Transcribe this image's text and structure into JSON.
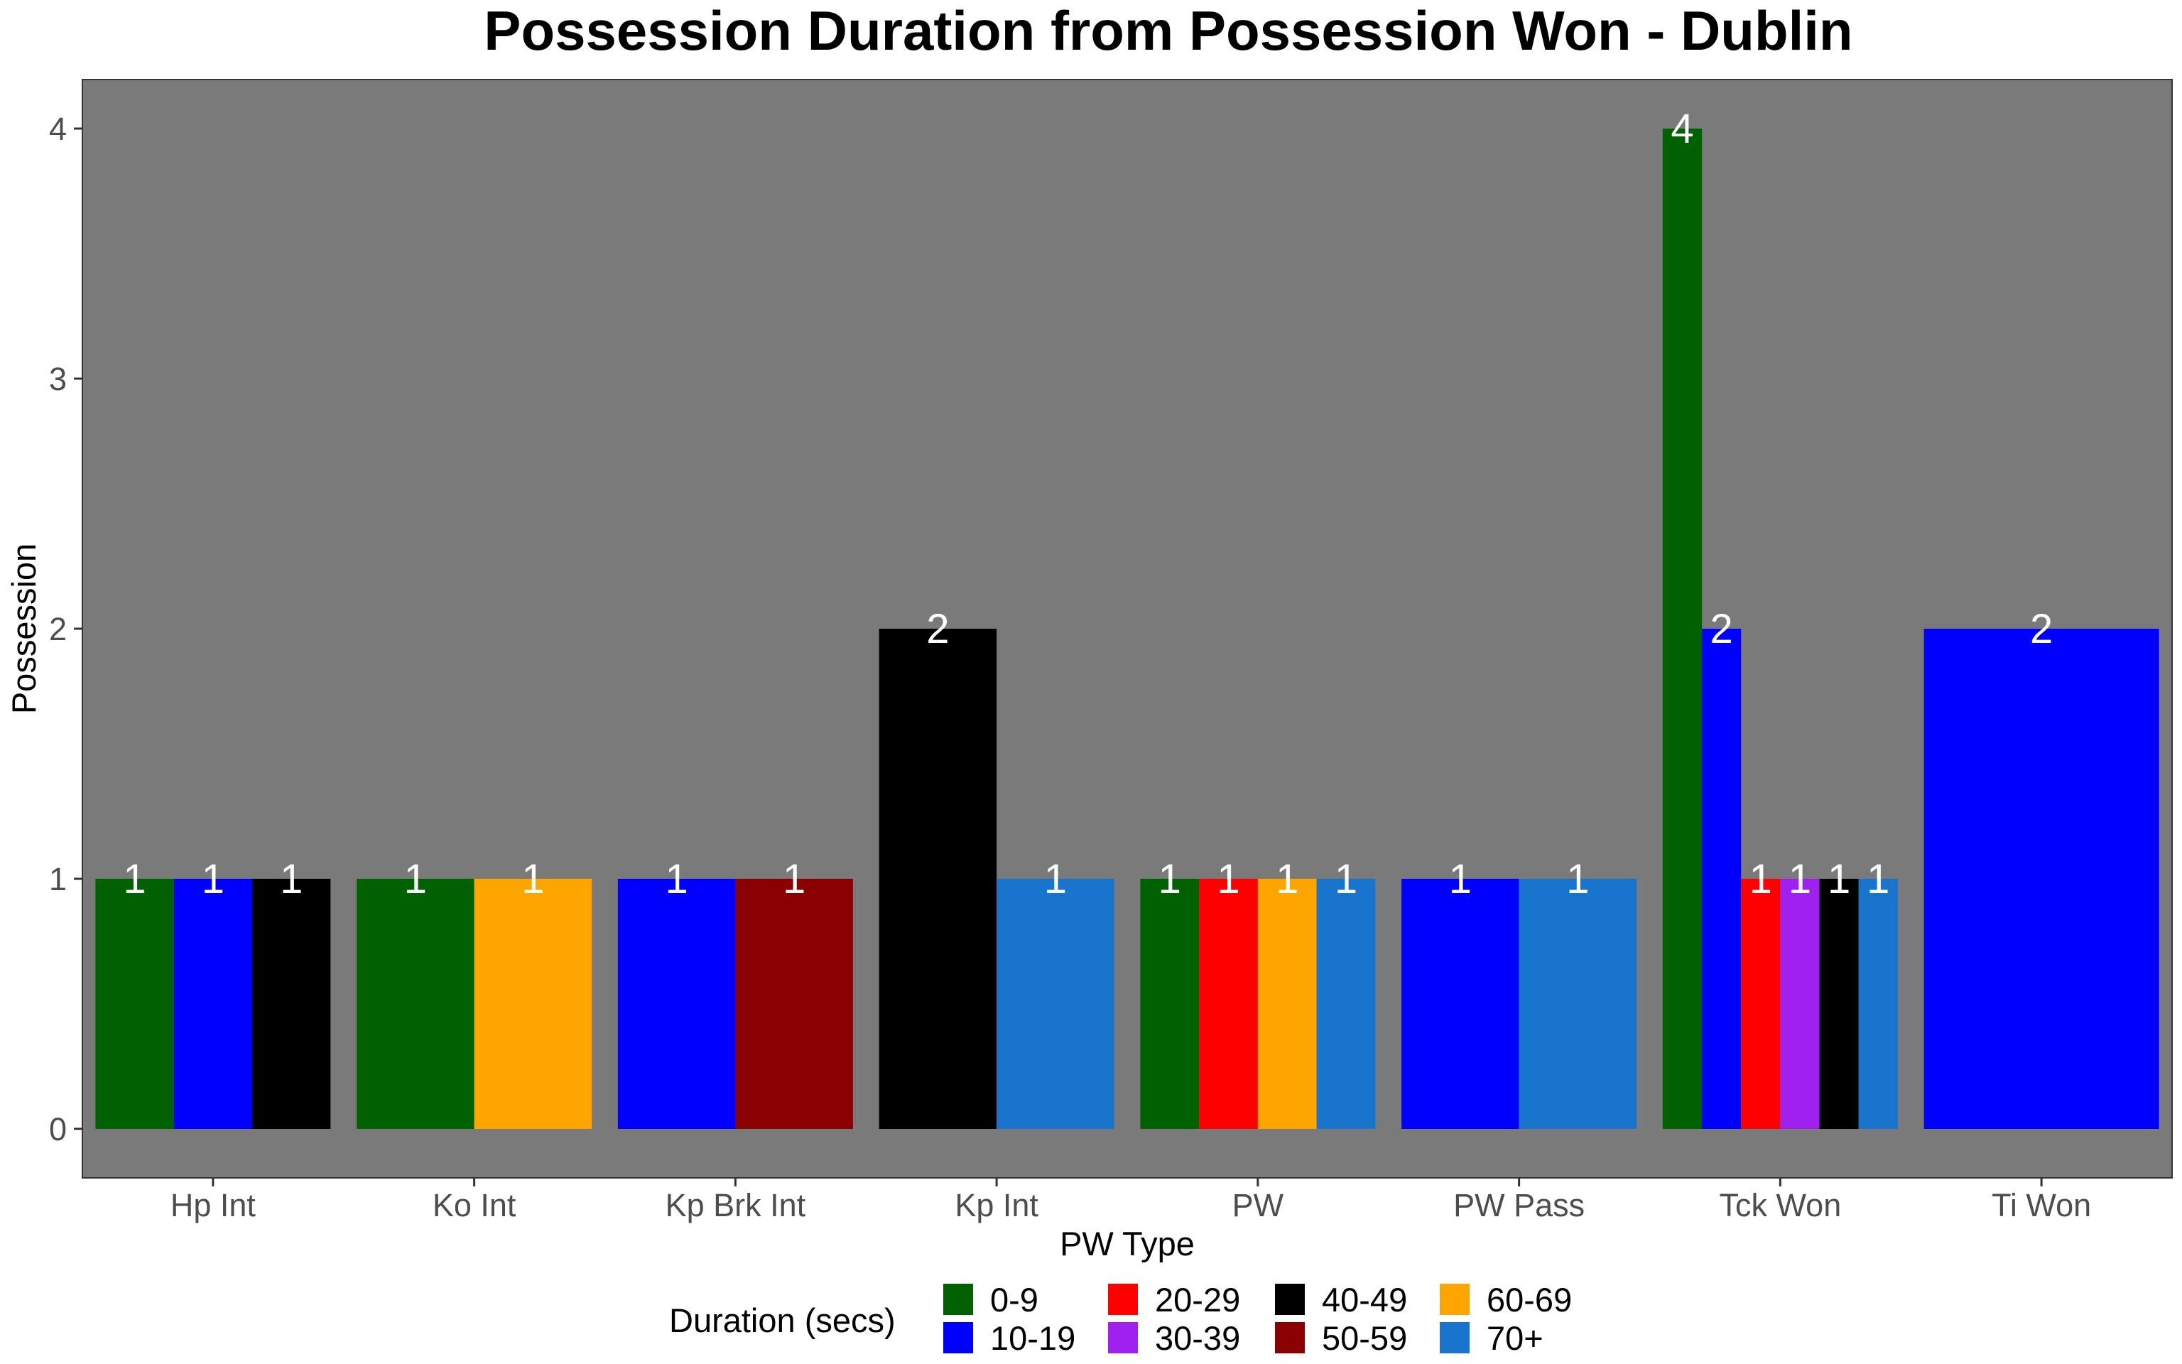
{
  "chart_data": {
    "type": "bar",
    "title": "Possession Duration from Possession Won - Dublin",
    "xlabel": "PW Type",
    "ylabel": "Possession",
    "ylim": [
      0,
      4.2
    ],
    "y_ticks": [
      "0",
      "1",
      "2",
      "3",
      "4"
    ],
    "categories": [
      "Hp Int",
      "Ko Int",
      "Kp Brk Int",
      "Kp Int",
      "PW",
      "PW Pass",
      "Tck Won",
      "Ti Won"
    ],
    "legend": {
      "title": "Duration (secs)",
      "position": "bottom",
      "items": [
        {
          "name": "0-9",
          "color": "#006100"
        },
        {
          "name": "10-19",
          "color": "#0000ff"
        },
        {
          "name": "20-29",
          "color": "#ff0000"
        },
        {
          "name": "30-39",
          "color": "#a020f0"
        },
        {
          "name": "40-49",
          "color": "#000000"
        },
        {
          "name": "50-59",
          "color": "#8b0000"
        },
        {
          "name": "60-69",
          "color": "#ffa500"
        },
        {
          "name": "70+",
          "color": "#1874cd"
        }
      ]
    },
    "groups": [
      {
        "category": "Hp Int",
        "bars": [
          {
            "duration": "0-9",
            "value": 1,
            "label": "1"
          },
          {
            "duration": "10-19",
            "value": 1,
            "label": "1"
          },
          {
            "duration": "40-49",
            "value": 1,
            "label": "1"
          }
        ]
      },
      {
        "category": "Ko Int",
        "bars": [
          {
            "duration": "0-9",
            "value": 1,
            "label": "1"
          },
          {
            "duration": "60-69",
            "value": 1,
            "label": "1"
          }
        ]
      },
      {
        "category": "Kp Brk Int",
        "bars": [
          {
            "duration": "10-19",
            "value": 1,
            "label": "1"
          },
          {
            "duration": "50-59",
            "value": 1,
            "label": "1"
          }
        ]
      },
      {
        "category": "Kp Int",
        "bars": [
          {
            "duration": "40-49",
            "value": 2,
            "label": "2"
          },
          {
            "duration": "70+",
            "value": 1,
            "label": "1"
          }
        ]
      },
      {
        "category": "PW",
        "bars": [
          {
            "duration": "0-9",
            "value": 1,
            "label": "1"
          },
          {
            "duration": "20-29",
            "value": 1,
            "label": "1"
          },
          {
            "duration": "60-69",
            "value": 1,
            "label": "1"
          },
          {
            "duration": "70+",
            "value": 1,
            "label": "1"
          }
        ]
      },
      {
        "category": "PW Pass",
        "bars": [
          {
            "duration": "10-19",
            "value": 1,
            "label": "1"
          },
          {
            "duration": "70+",
            "value": 1,
            "label": "1"
          }
        ]
      },
      {
        "category": "Tck Won",
        "bars": [
          {
            "duration": "0-9",
            "value": 4,
            "label": "4"
          },
          {
            "duration": "10-19",
            "value": 2,
            "label": "2"
          },
          {
            "duration": "20-29",
            "value": 1,
            "label": "1"
          },
          {
            "duration": "30-39",
            "value": 1,
            "label": "1"
          },
          {
            "duration": "40-49",
            "value": 1,
            "label": "1"
          },
          {
            "duration": "70+",
            "value": 1,
            "label": "1"
          }
        ]
      },
      {
        "category": "Ti Won",
        "bars": [
          {
            "duration": "10-19",
            "value": 2,
            "label": "2"
          }
        ]
      }
    ],
    "panel_background": "#7a7a7a",
    "grid": false
  }
}
